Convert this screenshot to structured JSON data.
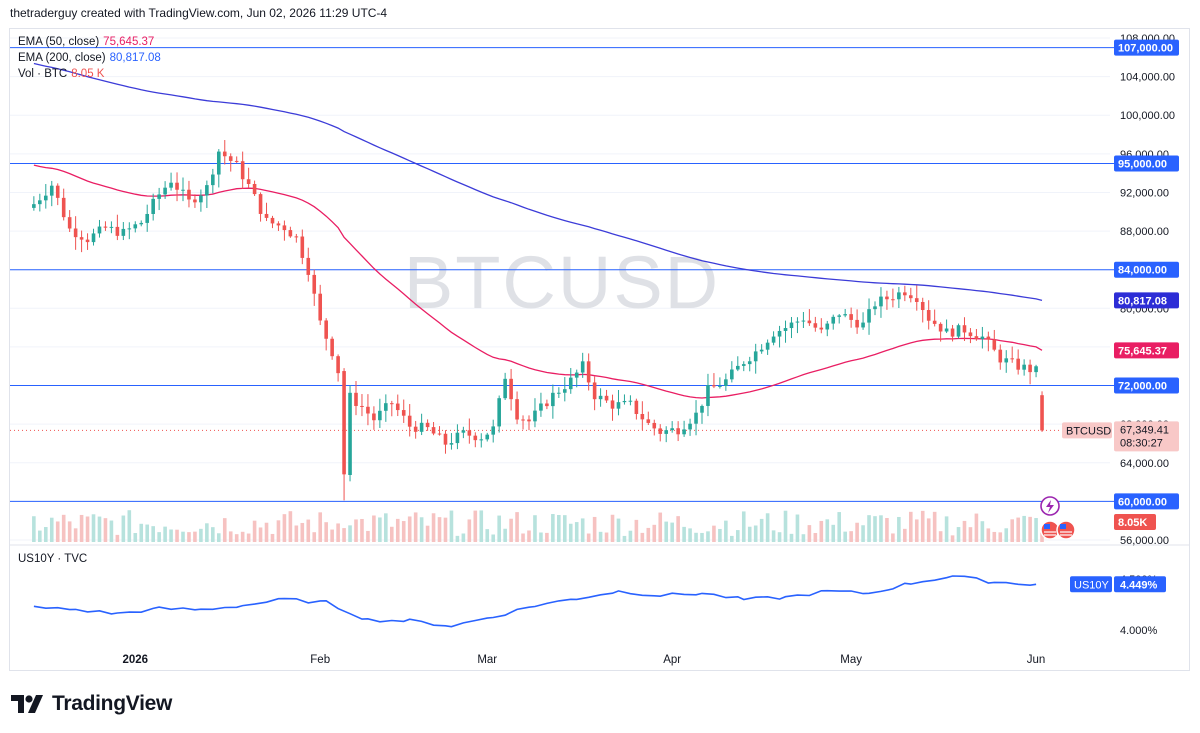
{
  "header": {
    "attribution": "thetraderguy created with TradingView.com, Jun 02, 2026 11:29 UTC-4"
  },
  "watermark": "BTCUSD",
  "legend": [
    {
      "label": "EMA (50, close)",
      "value": "75,645.37",
      "color": "#e91e63"
    },
    {
      "label": "EMA (200, close)",
      "value": "80,817.08",
      "color": "#2962ff"
    },
    {
      "label": "Vol · BTC",
      "value": "8.05 K",
      "color": "#ef5350"
    }
  ],
  "lower_pane": {
    "label": "US10Y · TVC",
    "badge_name": "US10Y",
    "badge_value": "4.449%",
    "ticks": [
      "4.500%",
      "4.000%"
    ]
  },
  "price_badges": {
    "last": {
      "symbol": "BTCUSD",
      "price": "67,349.41",
      "countdown": "08:30:27"
    },
    "volume": "8.05K"
  },
  "footer": {
    "brand": "TradingView"
  },
  "colors": {
    "up": "#26a69a",
    "down": "#ef5350",
    "ema50": "#e91e63",
    "ema200": "#3c3cd8",
    "hline": "#2962ff",
    "us10y": "#2962ff"
  },
  "chart_data": [
    {
      "type": "candlestick",
      "symbol": "BTCUSD",
      "timeframe": "1D",
      "x_ticks": [
        "2026",
        "Feb",
        "Mar",
        "Apr",
        "May",
        "Jun"
      ],
      "y_ticks": [
        "108,000.00",
        "104,000.00",
        "100,000.00",
        "96,000.00",
        "92,000.00",
        "88,000.00",
        "84,000.00",
        "80,000.00",
        "76,000.00",
        "72,000.00",
        "68,000.00",
        "64,000.00",
        "60,000.00",
        "56,000.00"
      ],
      "ylim": [
        56000,
        108400
      ],
      "horizontal_levels": [
        {
          "value": 107000,
          "label": "107,000.00"
        },
        {
          "value": 95000,
          "label": "95,000.00"
        },
        {
          "value": 84000,
          "label": "84,000.00"
        },
        {
          "value": 72000,
          "label": "72,000.00"
        },
        {
          "value": 60000,
          "label": "60,000.00"
        }
      ],
      "ema50": {
        "name": "EMA (50, close)",
        "last": 75645.37,
        "label": "75,645.37"
      },
      "ema200": {
        "name": "EMA (200, close)",
        "last": 80817.08,
        "label": "80,817.08"
      },
      "close_path": [
        [
          "Dec 15",
          90800
        ],
        [
          "Dec 18",
          92800
        ],
        [
          "Dec 21",
          88200
        ],
        [
          "Dec 24",
          87200
        ],
        [
          "Dec 27",
          88300
        ],
        [
          "Dec 30",
          87800
        ],
        [
          "Jan 02",
          88900
        ],
        [
          "Jan 05",
          91800
        ],
        [
          "Jan 07",
          93300
        ],
        [
          "Jan 10",
          91000
        ],
        [
          "Jan 13",
          92500
        ],
        [
          "Jan 15",
          96300
        ],
        [
          "Jan 18",
          94800
        ],
        [
          "Jan 20",
          92700
        ],
        [
          "Jan 23",
          89000
        ],
        [
          "Jan 26",
          88400
        ],
        [
          "Jan 28",
          87300
        ],
        [
          "Jan 30",
          84000
        ],
        [
          "Feb 01",
          78500
        ],
        [
          "Feb 03",
          75500
        ],
        [
          "Feb 04",
          73500
        ],
        [
          "Feb 05",
          62800
        ],
        [
          "Feb 06",
          70800
        ],
        [
          "Feb 08",
          69800
        ],
        [
          "Feb 10",
          68500
        ],
        [
          "Feb 13",
          70200
        ],
        [
          "Feb 16",
          67800
        ],
        [
          "Feb 19",
          67500
        ],
        [
          "Feb 22",
          66000
        ],
        [
          "Feb 25",
          67000
        ],
        [
          "Feb 28",
          66700
        ],
        [
          "Mar 02",
          67500
        ],
        [
          "Mar 04",
          73000
        ],
        [
          "Mar 06",
          69000
        ],
        [
          "Mar 08",
          68300
        ],
        [
          "Mar 12",
          71000
        ],
        [
          "Mar 15",
          72500
        ],
        [
          "Mar 17",
          74000
        ],
        [
          "Mar 19",
          71000
        ],
        [
          "Mar 22",
          70000
        ],
        [
          "Mar 25",
          70000
        ],
        [
          "Mar 28",
          68000
        ],
        [
          "Mar 30",
          67200
        ],
        [
          "Apr 02",
          67500
        ],
        [
          "Apr 05",
          69000
        ],
        [
          "Apr 07",
          71500
        ],
        [
          "Apr 10",
          72500
        ],
        [
          "Apr 13",
          74500
        ],
        [
          "Apr 15",
          75500
        ],
        [
          "Apr 18",
          77500
        ],
        [
          "Apr 20",
          78000
        ],
        [
          "Apr 23",
          79000
        ],
        [
          "Apr 26",
          77500
        ],
        [
          "Apr 29",
          79500
        ],
        [
          "May 01",
          78800
        ],
        [
          "May 03",
          78300
        ],
        [
          "May 05",
          80500
        ],
        [
          "May 08",
          81300
        ],
        [
          "May 10",
          81800
        ],
        [
          "May 12",
          81200
        ],
        [
          "May 14",
          79000
        ],
        [
          "May 17",
          77500
        ],
        [
          "May 20",
          77800
        ],
        [
          "May 23",
          77000
        ],
        [
          "May 26",
          74800
        ],
        [
          "May 29",
          74000
        ],
        [
          "Jun 01",
          73500
        ],
        [
          "Jun 02",
          67349.41
        ]
      ],
      "volume": {
        "name": "Vol · BTC",
        "last": "8.05 K"
      }
    },
    {
      "type": "line",
      "symbol": "US10Y",
      "source": "TVC",
      "y_ticks": [
        "4.500%",
        "4.000%"
      ],
      "last": 4.449,
      "x": [
        "Dec 15",
        "Dec 22",
        "Dec 29",
        "Jan 05",
        "Jan 12",
        "Jan 19",
        "Jan 26",
        "Feb 02",
        "Feb 09",
        "Feb 16",
        "Feb 23",
        "Mar 02",
        "Mar 09",
        "Mar 16",
        "Mar 23",
        "Mar 30",
        "Apr 06",
        "Apr 13",
        "Apr 20",
        "Apr 27",
        "May 04",
        "May 11",
        "May 18",
        "May 25",
        "Jun 01"
      ],
      "values": [
        4.22,
        4.2,
        4.16,
        4.21,
        4.2,
        4.24,
        4.3,
        4.27,
        4.1,
        4.09,
        4.04,
        4.13,
        4.24,
        4.31,
        4.38,
        4.34,
        4.36,
        4.3,
        4.32,
        4.38,
        4.36,
        4.46,
        4.53,
        4.47,
        4.449
      ]
    }
  ]
}
